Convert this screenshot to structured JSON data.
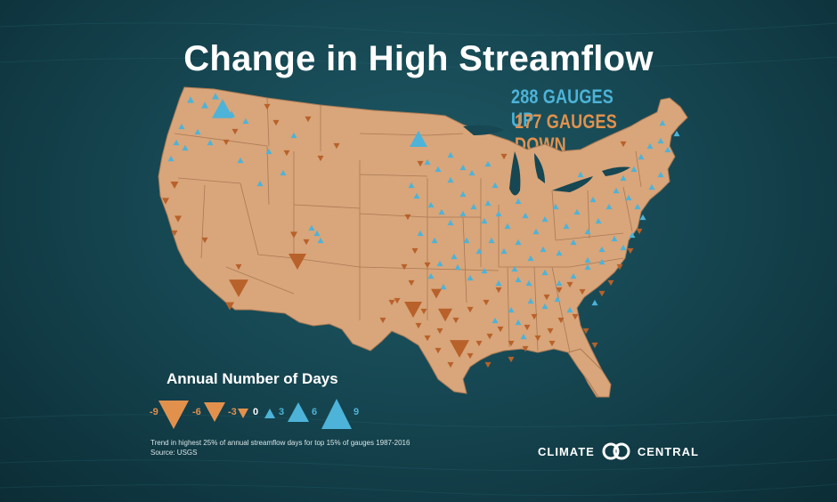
{
  "title": "Change in High Streamflow",
  "gauges_up": "288 GAUGES UP",
  "gauges_down": "177 GAUGES DOWN",
  "colors": {
    "up": "#4db3d8",
    "down": "#b8612a",
    "land": "#d9a57a",
    "border": "#a97a55",
    "legend_down": "#e2914d"
  },
  "legend": {
    "title": "Annual Number of Days",
    "labels": [
      "-9",
      "-6",
      "-3",
      "0",
      "3",
      "6",
      "9"
    ]
  },
  "footnote": {
    "line1": "Trend in highest 25% of annual streamflow days for top 15% of gauges 1987-2016",
    "line2": "Source: USGS"
  },
  "logo": {
    "left": "CLIMATE",
    "right": "CENTRAL",
    "icon": "interlocking-rings-icon"
  }
}
